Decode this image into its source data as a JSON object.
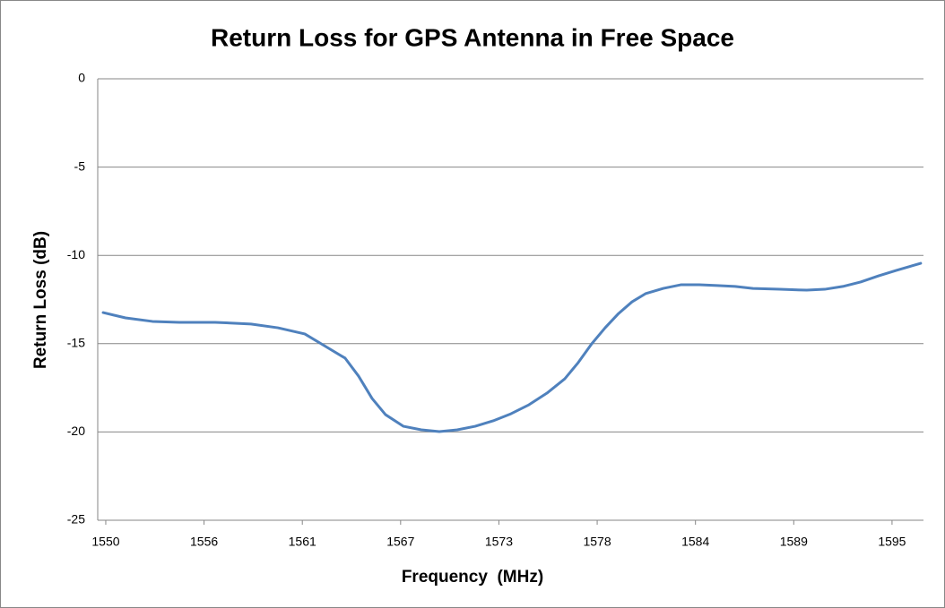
{
  "chart_data": {
    "type": "line",
    "title": "Return Loss for GPS Antenna in Free Space",
    "x_label": "Frequency  (MHz)",
    "y_label": "Return Loss (dB)",
    "x": [
      1549.85,
      1551.13,
      1552.67,
      1554.21,
      1556.26,
      1558.31,
      1559.85,
      1561.39,
      1562.42,
      1563.7,
      1564.47,
      1565.24,
      1566.01,
      1567.04,
      1568.06,
      1569.09,
      1570.12,
      1571.14,
      1572.17,
      1573.19,
      1574.22,
      1575.25,
      1576.27,
      1577.04,
      1577.81,
      1578.58,
      1579.35,
      1580.12,
      1580.89,
      1581.91,
      1582.94,
      1583.97,
      1584.99,
      1586.02,
      1587.04,
      1588.58,
      1590.12,
      1591.15,
      1592.18,
      1593.2,
      1594.23,
      1595.25,
      1596.64
    ],
    "series": [
      {
        "name": "Return Loss",
        "color": "#4f81bd",
        "values": [
          -13.24,
          -13.54,
          -13.74,
          -13.79,
          -13.79,
          -13.89,
          -14.1,
          -14.45,
          -15.06,
          -15.82,
          -16.84,
          -18.1,
          -19.02,
          -19.68,
          -19.88,
          -19.98,
          -19.88,
          -19.68,
          -19.37,
          -18.97,
          -18.46,
          -17.8,
          -16.99,
          -16.07,
          -15.01,
          -14.1,
          -13.29,
          -12.63,
          -12.17,
          -11.87,
          -11.66,
          -11.66,
          -11.71,
          -11.76,
          -11.87,
          -11.92,
          -11.97,
          -11.92,
          -11.76,
          -11.51,
          -11.16,
          -10.85,
          -10.45
        ]
      }
    ],
    "xlim": [
      1549.54,
      1596.8
    ],
    "xticks": [
      1550,
      {
        "value": 1555.625,
        "label": "1556"
      },
      {
        "value": 1561.25,
        "label": "1561"
      },
      {
        "value": 1566.875,
        "label": "1567"
      },
      {
        "value": 1572.5,
        "label": "1573"
      },
      {
        "value": 1578.125,
        "label": "1578"
      },
      {
        "value": 1583.75,
        "label": "1584"
      },
      {
        "value": 1589.375,
        "label": "1589"
      },
      1595
    ],
    "ylim": [
      -25,
      0
    ],
    "yticks": [
      0,
      -5,
      -10,
      -15,
      -20,
      -25
    ],
    "grid": true
  }
}
